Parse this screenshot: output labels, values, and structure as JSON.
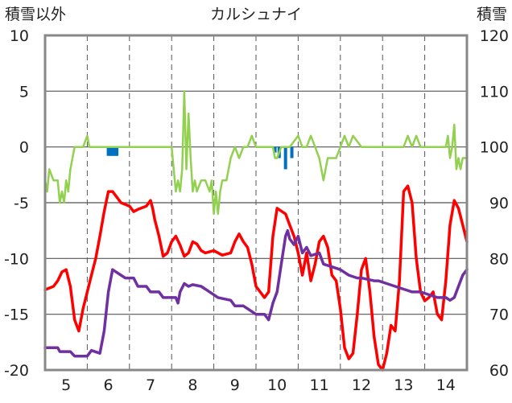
{
  "chart_data": {
    "type": "line",
    "title": "カルシュナイ",
    "ylabel_left": "積雪以外",
    "ylabel_right": "積雪",
    "xlim": [
      4.5,
      14.5
    ],
    "ylim_left": [
      -20,
      10
    ],
    "ylim_right": [
      60,
      120
    ],
    "x_ticks": [
      5,
      6,
      7,
      8,
      9,
      10,
      11,
      12,
      13,
      14
    ],
    "x_tick_labels": [
      "5",
      "6",
      "7",
      "8",
      "9",
      "10",
      "11",
      "12",
      "13",
      "14"
    ],
    "y_left_ticks": [
      10,
      5,
      0,
      -5,
      -10,
      -15,
      -20
    ],
    "y_left_tick_labels": [
      "10",
      "5",
      "0",
      "-5",
      "-10",
      "-15",
      "-20"
    ],
    "y_right_ticks": [
      120,
      110,
      100,
      90,
      80,
      70,
      60
    ],
    "y_right_tick_labels": [
      "120",
      "110",
      "100",
      "90",
      "80",
      "70",
      "60"
    ],
    "grid": true,
    "colors": {
      "red": "#ff0000",
      "purple": "#7030a0",
      "green": "#92d050",
      "blue": "#0070c0",
      "axis": "#888888",
      "grid": "#555555"
    },
    "series": [
      {
        "color": "#ff0000",
        "axis": "left",
        "type": "line",
        "x": [
          4.5,
          4.7,
          4.8,
          4.9,
          5.0,
          5.1,
          5.2,
          5.3,
          5.4,
          5.5,
          5.6,
          5.7,
          5.8,
          5.9,
          6.0,
          6.1,
          6.2,
          6.3,
          6.5,
          6.6,
          6.7,
          6.9,
          7.0,
          7.05,
          7.1,
          7.2,
          7.3,
          7.4,
          7.5,
          7.6,
          7.7,
          7.8,
          7.9,
          8.0,
          8.1,
          8.2,
          8.3,
          8.5,
          8.7,
          8.9,
          9.0,
          9.1,
          9.2,
          9.3,
          9.4,
          9.5,
          9.7,
          9.8,
          9.9,
          10.0,
          10.2,
          10.3,
          10.4,
          10.5,
          10.6,
          10.7,
          10.8,
          10.9,
          11.0,
          11.1,
          11.2,
          11.3,
          11.4,
          11.5,
          11.6,
          11.7,
          11.8,
          11.9,
          12.0,
          12.1,
          12.2,
          12.3,
          12.4,
          12.5,
          12.6,
          12.7,
          12.8,
          12.9,
          13.0,
          13.1,
          13.2,
          13.3,
          13.4,
          13.5,
          13.6,
          13.7,
          13.8,
          13.9,
          14.0,
          14.1,
          14.2,
          14.3,
          14.4,
          14.5
        ],
        "y": [
          -12.8,
          -12.5,
          -12.0,
          -11.2,
          -11.0,
          -12.5,
          -15.5,
          -16.5,
          -14.5,
          -13.0,
          -11.5,
          -10.0,
          -8.0,
          -5.8,
          -4.0,
          -4.0,
          -4.5,
          -5.0,
          -5.3,
          -5.8,
          -5.6,
          -5.3,
          -4.8,
          -5.5,
          -6.5,
          -8.0,
          -9.8,
          -9.5,
          -8.5,
          -8.0,
          -8.8,
          -9.8,
          -9.5,
          -8.5,
          -8.7,
          -9.3,
          -9.5,
          -9.3,
          -9.7,
          -9.5,
          -8.5,
          -7.8,
          -8.5,
          -9.0,
          -10.5,
          -12.5,
          -13.5,
          -13.0,
          -8.0,
          -5.5,
          -6.0,
          -7.0,
          -8.0,
          -9.5,
          -11.5,
          -9.5,
          -12.0,
          -10.5,
          -8.5,
          -8.0,
          -9.0,
          -11.5,
          -12.0,
          -14.5,
          -18.0,
          -19.0,
          -18.5,
          -15.0,
          -11.0,
          -10.0,
          -13.0,
          -17.0,
          -19.5,
          -20.0,
          -18.5,
          -16.0,
          -16.5,
          -12.0,
          -4.0,
          -3.5,
          -5.0,
          -10.0,
          -13.0,
          -13.8,
          -13.5,
          -13.0,
          -15.0,
          -15.5,
          -12.0,
          -7.0,
          -4.8,
          -5.5,
          -7.0,
          -8.5
        ]
      },
      {
        "color": "#7030a0",
        "axis": "right",
        "type": "line",
        "x": [
          4.5,
          4.8,
          4.85,
          5.1,
          5.2,
          5.5,
          5.6,
          5.8,
          5.9,
          6.0,
          6.1,
          6.3,
          6.4,
          6.6,
          6.7,
          6.9,
          7.0,
          7.2,
          7.3,
          7.6,
          7.65,
          7.7,
          7.8,
          7.9,
          8.0,
          8.2,
          8.4,
          8.6,
          8.9,
          9.0,
          9.1,
          9.2,
          9.5,
          9.7,
          9.8,
          9.9,
          10.0,
          10.1,
          10.2,
          10.25,
          10.3,
          10.4,
          10.5,
          10.6,
          10.7,
          10.8,
          11.0,
          11.1,
          11.3,
          11.5,
          11.7,
          11.9,
          12.0,
          12.3,
          12.4,
          12.6,
          12.8,
          13.0,
          13.2,
          13.4,
          13.6,
          13.8,
          14.0,
          14.1,
          14.2,
          14.3,
          14.4,
          14.5
        ],
        "y": [
          64,
          64,
          63.3,
          63.3,
          62.5,
          62.5,
          63.5,
          63,
          67,
          74,
          78,
          77,
          76.5,
          76.5,
          75,
          75,
          74,
          74,
          73,
          73,
          72,
          74,
          75.5,
          75,
          75.3,
          75,
          74,
          73,
          72.5,
          71.5,
          71.5,
          71.5,
          70,
          70,
          69,
          72,
          74,
          79,
          84,
          85,
          83.5,
          82.5,
          84,
          81,
          82,
          80.5,
          81,
          79,
          78.5,
          78,
          77,
          76.5,
          76.5,
          76,
          76,
          75.5,
          75,
          74.5,
          74,
          74,
          73.5,
          73,
          73,
          72.5,
          73,
          75,
          77,
          78
        ]
      },
      {
        "color": "#92d050",
        "axis": "left",
        "type": "line",
        "x": [
          4.5,
          4.55,
          4.6,
          4.7,
          4.8,
          4.85,
          4.9,
          4.95,
          5.0,
          5.05,
          5.1,
          5.2,
          5.4,
          5.5,
          5.55,
          5.6,
          5.7,
          5.8,
          6.0,
          6.5,
          7.0,
          7.5,
          7.55,
          7.6,
          7.65,
          7.7,
          7.75,
          7.8,
          7.85,
          7.9,
          7.95,
          8.0,
          8.05,
          8.1,
          8.2,
          8.3,
          8.4,
          8.45,
          8.5,
          8.55,
          8.6,
          8.65,
          8.7,
          8.8,
          8.9,
          9.0,
          9.1,
          9.2,
          9.3,
          9.4,
          9.5,
          9.9,
          9.95,
          10.0,
          10.1,
          10.3,
          10.5,
          10.6,
          10.7,
          10.8,
          10.9,
          11.0,
          11.1,
          11.2,
          11.4,
          11.5,
          11.6,
          11.7,
          11.8,
          12.0,
          12.5,
          13.0,
          13.1,
          13.2,
          13.3,
          13.4,
          14.0,
          14.05,
          14.1,
          14.15,
          14.2,
          14.25,
          14.3,
          14.35,
          14.4,
          14.5
        ],
        "y": [
          -3,
          -4,
          -2,
          -3,
          -3,
          -5,
          -4,
          -5,
          -3,
          -4,
          -2,
          0,
          0,
          1,
          0,
          0,
          0,
          0,
          0,
          0,
          0,
          0,
          -2,
          -4,
          -3,
          -4,
          -2,
          5,
          -2,
          3,
          -1,
          -4,
          -3,
          -4,
          -3,
          -3,
          -4,
          -3,
          -6,
          -4,
          -6,
          -4,
          -3,
          -3,
          -1,
          0,
          -1,
          0,
          0,
          1,
          0,
          0,
          -1,
          -1,
          0,
          0,
          1,
          0,
          0,
          1,
          0,
          -1,
          -3,
          -1,
          -1,
          0,
          1,
          0,
          1,
          0,
          0,
          0,
          1,
          0,
          1,
          0,
          0,
          1,
          -1,
          0,
          2,
          -2,
          -1,
          -2,
          -1,
          -1
        ]
      },
      {
        "color": "#0070c0",
        "axis": "left",
        "type": "bar",
        "x": [
          6.0,
          6.05,
          6.1,
          6.15,
          6.2,
          9.95,
          10.05,
          10.2,
          10.35
        ],
        "y": [
          -0.8,
          -0.8,
          -0.8,
          -0.8,
          -0.8,
          -0.5,
          -1,
          -2,
          -1
        ]
      }
    ]
  }
}
